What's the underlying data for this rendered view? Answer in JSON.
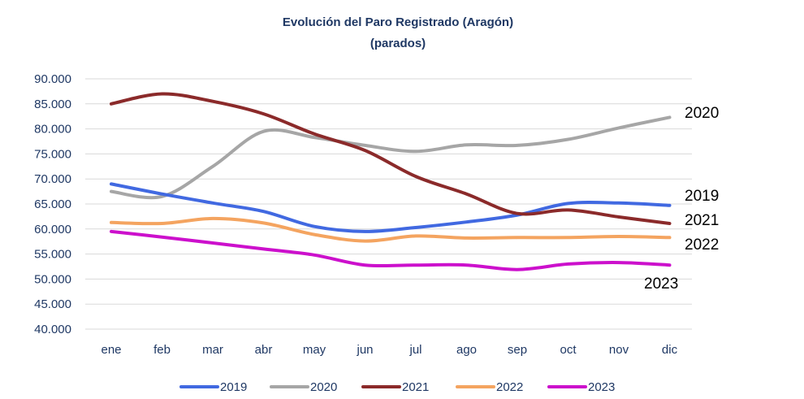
{
  "chart_data": {
    "type": "line",
    "title": "Evolución del Paro Registrado (Aragón)",
    "subtitle": "(parados)",
    "categories": [
      "ene",
      "feb",
      "mar",
      "abr",
      "may",
      "jun",
      "jul",
      "ago",
      "sep",
      "oct",
      "nov",
      "dic"
    ],
    "ylim": [
      40000,
      90000
    ],
    "yticks": [
      "40.000",
      "45.000",
      "50.000",
      "55.000",
      "60.000",
      "65.000",
      "70.000",
      "75.000",
      "80.000",
      "85.000",
      "90.000"
    ],
    "grid": true,
    "legend_position": "bottom",
    "series": [
      {
        "name": "2019",
        "color": "#4169e1",
        "values": [
          69000,
          67000,
          65200,
          63500,
          60500,
          59500,
          60300,
          61400,
          62800,
          65100,
          65200,
          64700
        ]
      },
      {
        "name": "2020",
        "color": "#a6a6a6",
        "values": [
          67500,
          66500,
          72500,
          79500,
          78300,
          76700,
          75500,
          76800,
          76700,
          77900,
          80200,
          82300
        ]
      },
      {
        "name": "2021",
        "color": "#8b2a2a",
        "values": [
          85000,
          87000,
          85500,
          83000,
          79000,
          75700,
          70500,
          67000,
          63100,
          63800,
          62400,
          61100
        ]
      },
      {
        "name": "2022",
        "color": "#f4a460",
        "values": [
          61300,
          61100,
          62100,
          61200,
          58900,
          57600,
          58600,
          58200,
          58300,
          58300,
          58500,
          58300
        ]
      },
      {
        "name": "2023",
        "color": "#cc10cc",
        "values": [
          59500,
          58400,
          57200,
          56000,
          54800,
          52800,
          52800,
          52800,
          51900,
          53000,
          53300,
          52800
        ]
      }
    ],
    "end_labels": [
      "2019",
      "2020",
      "2021",
      "2022",
      "2023"
    ]
  }
}
